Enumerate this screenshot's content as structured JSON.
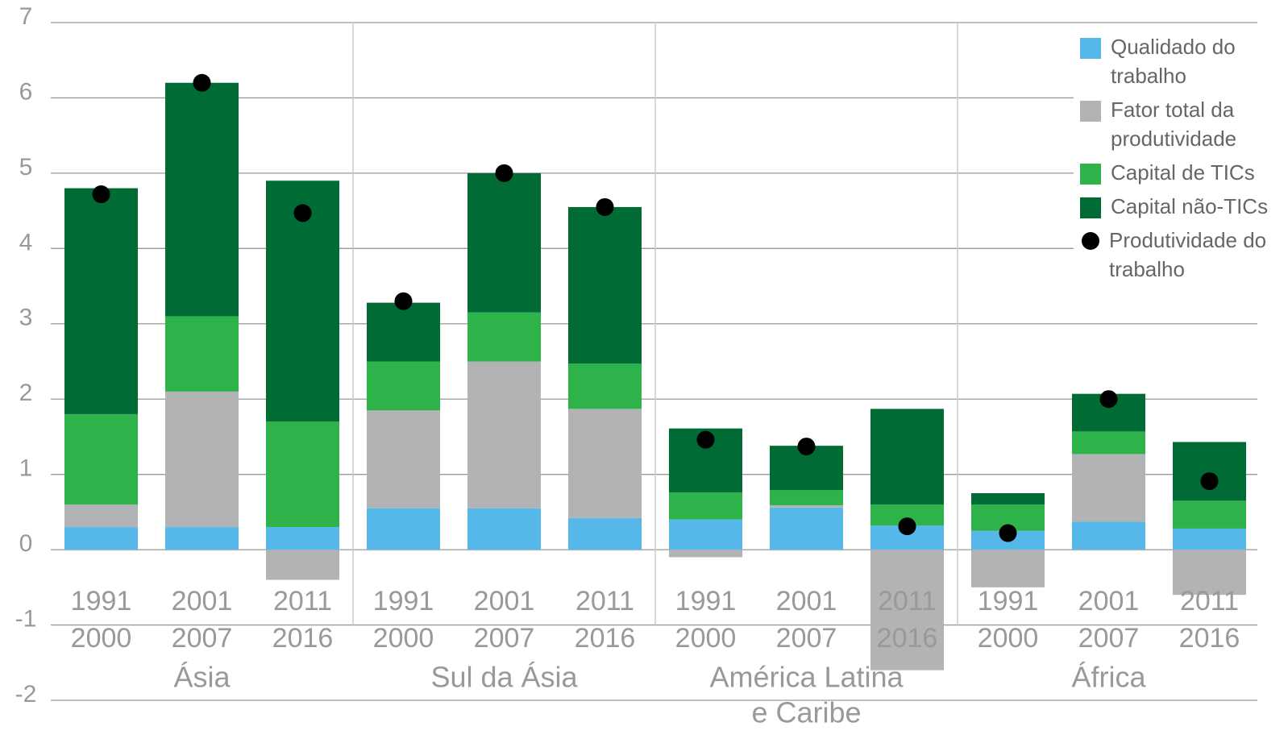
{
  "chart_data": {
    "type": "stacked_bar",
    "groups": [
      {
        "name": [
          "Ásia"
        ],
        "categories": [
          [
            "1991",
            "2000"
          ],
          [
            "2001",
            "2007"
          ],
          [
            "2011",
            "2016"
          ]
        ]
      },
      {
        "name": [
          "Sul da Ásia"
        ],
        "categories": [
          [
            "1991",
            "2000"
          ],
          [
            "2001",
            "2007"
          ],
          [
            "2011",
            "2016"
          ]
        ]
      },
      {
        "name": [
          "América Latina",
          "e Caribe"
        ],
        "categories": [
          [
            "1991",
            "2000"
          ],
          [
            "2001",
            "2007"
          ],
          [
            "2011",
            "2016"
          ]
        ]
      },
      {
        "name": [
          "África"
        ],
        "categories": [
          [
            "1991",
            "2000"
          ],
          [
            "2001",
            "2007"
          ],
          [
            "2011",
            "2016"
          ]
        ]
      }
    ],
    "series": [
      {
        "name": "Qualidado do trabalho",
        "color": "#56b8e8",
        "values": [
          0.3,
          0.3,
          0.3,
          0.55,
          0.55,
          0.42,
          0.4,
          0.56,
          0.32,
          0.25,
          0.37,
          0.28
        ]
      },
      {
        "name": "Fator total da produtividade",
        "color": "#b1b3b4",
        "values": [
          0.3,
          1.8,
          -0.4,
          1.3,
          1.95,
          1.45,
          -0.1,
          0.03,
          -1.6,
          -0.5,
          0.9,
          -0.6
        ]
      },
      {
        "name": "Capital de TICs",
        "color": "#2db34a",
        "values": [
          1.2,
          1.0,
          1.4,
          0.65,
          0.65,
          0.6,
          0.36,
          0.2,
          0.28,
          0.35,
          0.3,
          0.37
        ]
      },
      {
        "name": "Capital não-TICs",
        "color": "#006b35",
        "values": [
          3.0,
          3.1,
          3.2,
          0.78,
          1.85,
          2.08,
          0.85,
          0.59,
          1.27,
          0.15,
          0.5,
          0.78
        ]
      }
    ],
    "points": {
      "name": "Produtividade do trabalho",
      "color": "#000000",
      "values": [
        4.72,
        6.2,
        4.47,
        3.3,
        5.0,
        4.55,
        1.46,
        1.37,
        0.31,
        0.22,
        2.0,
        0.91
      ]
    },
    "ylim": [
      -2,
      7
    ],
    "yticks": [
      -2,
      -1,
      0,
      1,
      2,
      3,
      4,
      5,
      6,
      7
    ],
    "grid": true,
    "legend": "top-right"
  }
}
